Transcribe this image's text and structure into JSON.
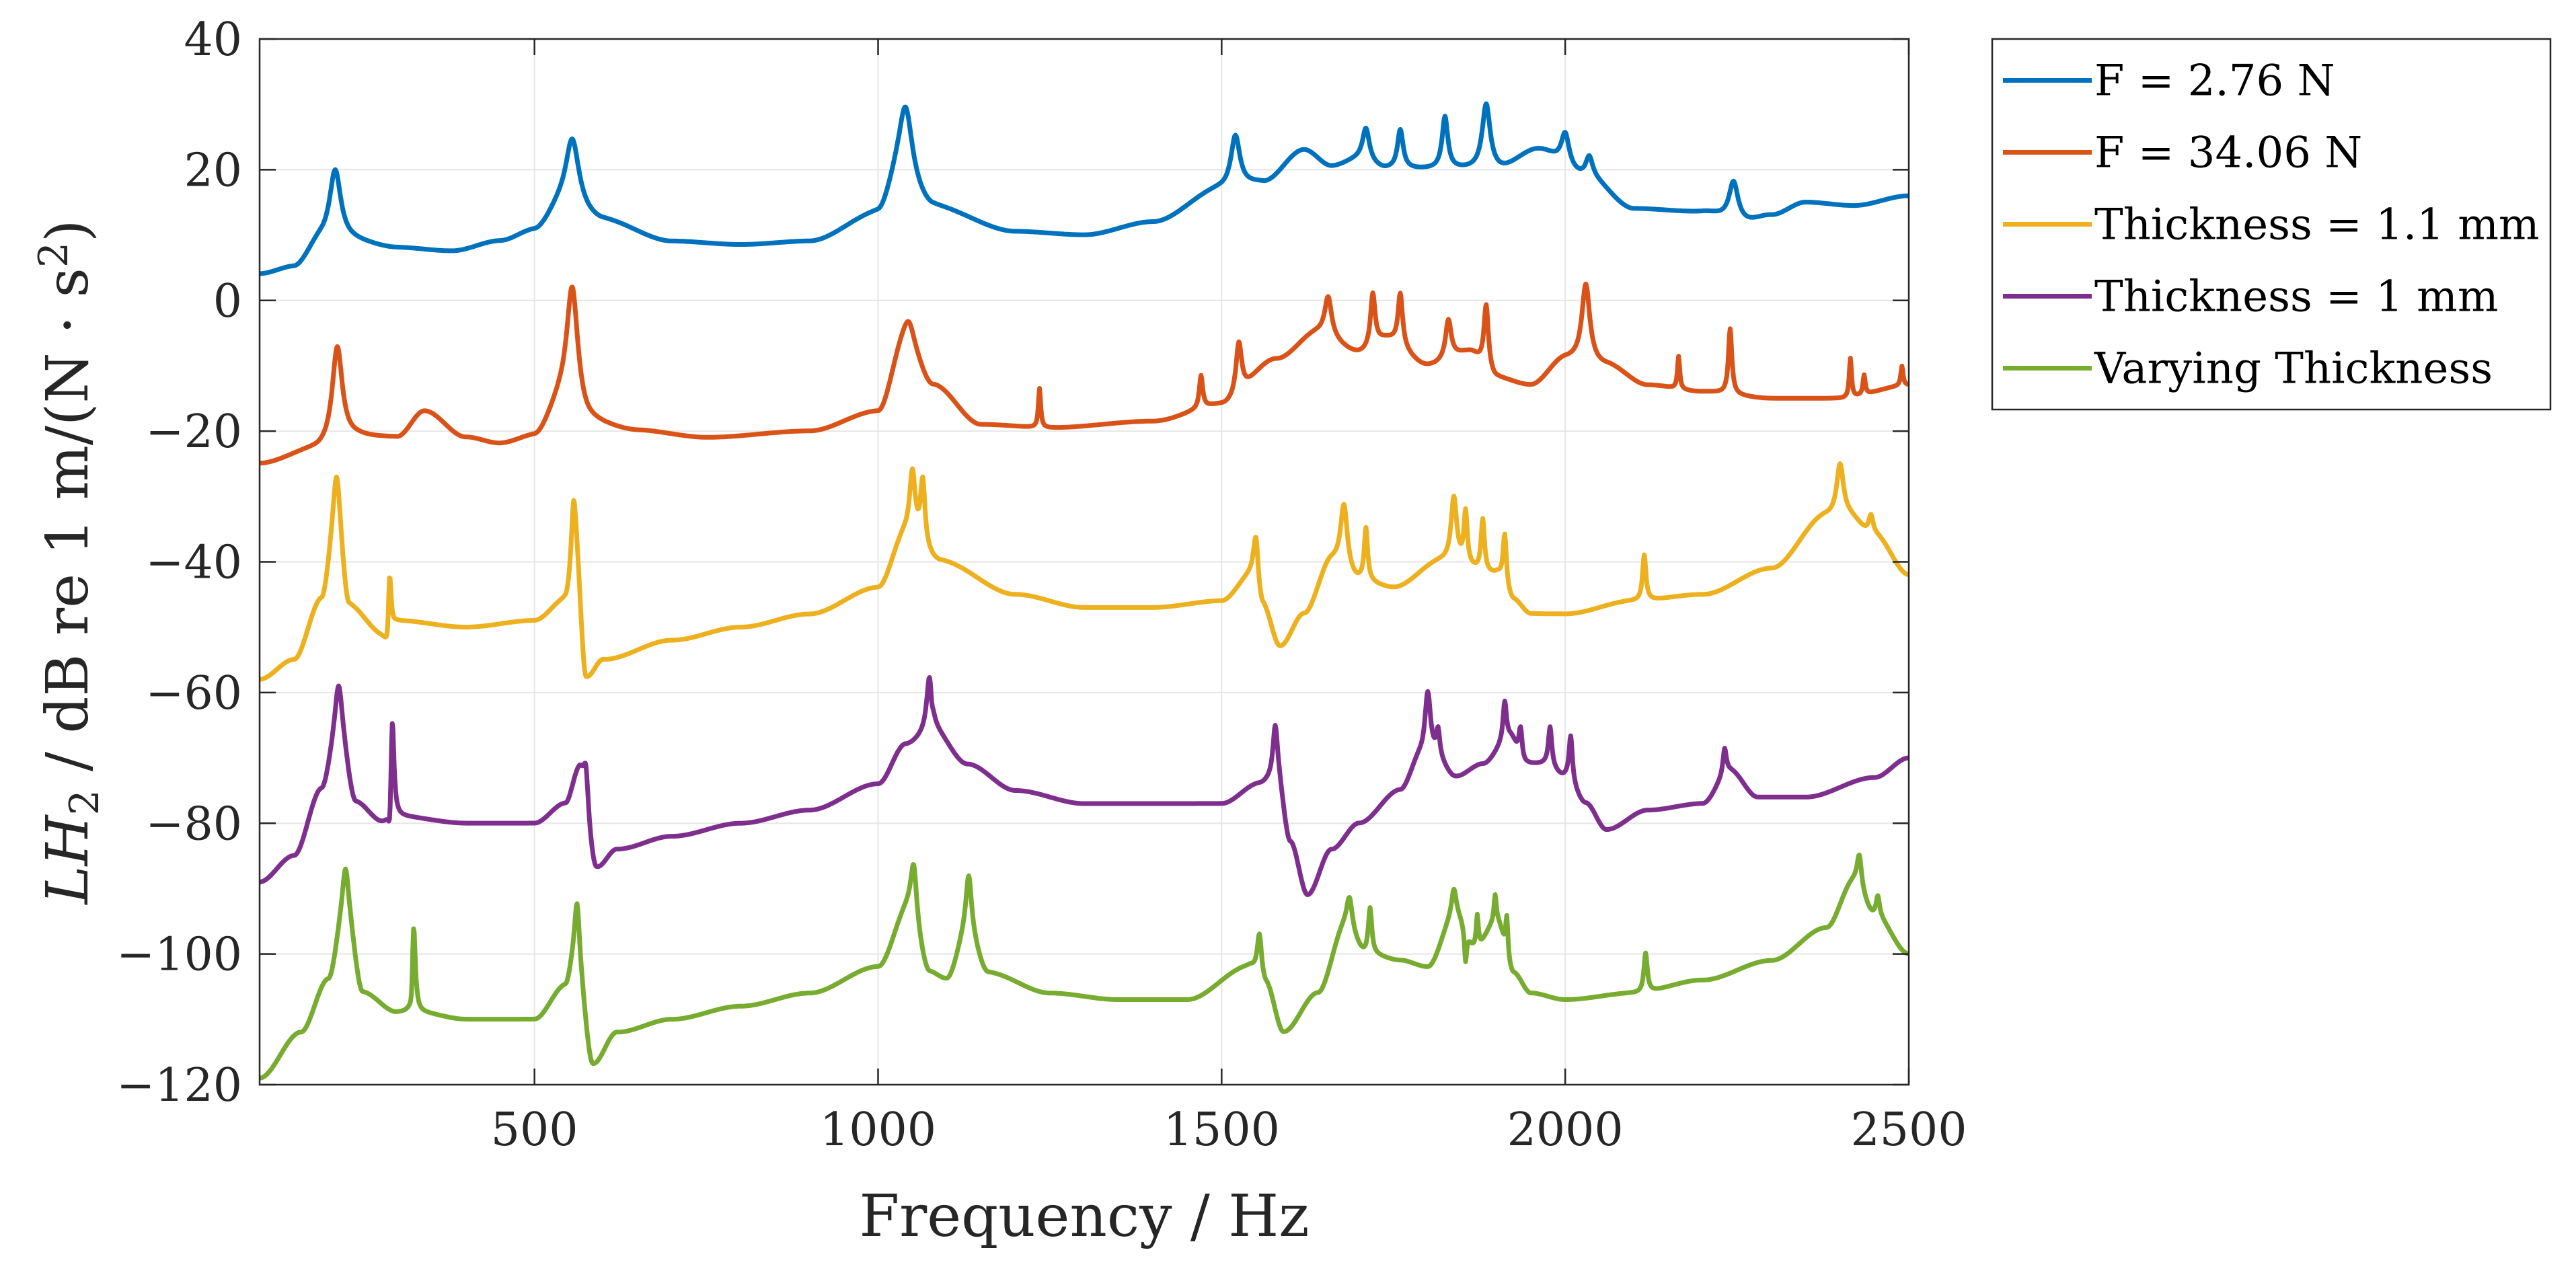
{
  "chart_data": {
    "type": "line",
    "title": "",
    "xlabel": "Frequency / Hz",
    "ylabel_parts": [
      "LH",
      "2",
      " / dB re 1 m/(N · s",
      "2",
      ")"
    ],
    "xlim": [
      100,
      2500
    ],
    "ylim": [
      -120,
      40
    ],
    "xticks": [
      500,
      1000,
      1500,
      2000,
      2500
    ],
    "xtick_labels": [
      "500",
      "1000",
      "1500",
      "2000",
      "2500"
    ],
    "yticks": [
      40,
      20,
      0,
      -20,
      -40,
      -60,
      -80,
      -100,
      -120
    ],
    "ytick_labels": [
      "40",
      "20",
      "0",
      "−20",
      "−40",
      "−60",
      "−80",
      "−100",
      "−120"
    ],
    "grid": true,
    "legend_position": "outside-right-top",
    "series": [
      {
        "name": "F = 2.76 N",
        "color": "#0072BD",
        "baseline": [
          [
            100,
            4
          ],
          [
            150,
            5
          ],
          [
            190,
            9
          ],
          [
            230,
            9
          ],
          [
            300,
            8
          ],
          [
            380,
            7.5
          ],
          [
            450,
            9
          ],
          [
            500,
            10.5
          ],
          [
            540,
            14
          ],
          [
            600,
            12
          ],
          [
            700,
            9
          ],
          [
            800,
            8.5
          ],
          [
            900,
            9
          ],
          [
            1000,
            13
          ],
          [
            1030,
            18
          ],
          [
            1080,
            14
          ],
          [
            1200,
            10.5
          ],
          [
            1300,
            10
          ],
          [
            1400,
            12
          ],
          [
            1500,
            17
          ],
          [
            1560,
            18
          ],
          [
            1620,
            23
          ],
          [
            1660,
            20.5
          ],
          [
            1700,
            21.5
          ],
          [
            1740,
            20
          ],
          [
            1800,
            20
          ],
          [
            1900,
            20
          ],
          [
            1960,
            23
          ],
          [
            2030,
            19
          ],
          [
            2100,
            14
          ],
          [
            2200,
            13.5
          ],
          [
            2260,
            12
          ],
          [
            2300,
            13
          ],
          [
            2350,
            15
          ],
          [
            2420,
            14.5
          ],
          [
            2500,
            16
          ]
        ],
        "peaks": [
          [
            210,
            11,
            10
          ],
          [
            555,
            11,
            12
          ],
          [
            1040,
            12,
            12
          ],
          [
            1520,
            8,
            8
          ],
          [
            1710,
            5,
            6
          ],
          [
            1760,
            6,
            5
          ],
          [
            1825,
            8,
            5
          ],
          [
            1885,
            10,
            7
          ],
          [
            2000,
            5,
            7
          ],
          [
            2035,
            3,
            6
          ],
          [
            2245,
            6,
            8
          ]
        ]
      },
      {
        "name": "F = 34.06 N",
        "color": "#D95319",
        "baseline": [
          [
            100,
            -25
          ],
          [
            180,
            -23
          ],
          [
            250,
            -21
          ],
          [
            300,
            -21
          ],
          [
            340,
            -17
          ],
          [
            400,
            -21
          ],
          [
            450,
            -22
          ],
          [
            500,
            -21
          ],
          [
            540,
            -16
          ],
          [
            580,
            -19
          ],
          [
            650,
            -20
          ],
          [
            750,
            -21
          ],
          [
            900,
            -20
          ],
          [
            1000,
            -17
          ],
          [
            1040,
            -6
          ],
          [
            1080,
            -13
          ],
          [
            1150,
            -19
          ],
          [
            1250,
            -19.5
          ],
          [
            1400,
            -18.5
          ],
          [
            1500,
            -16
          ],
          [
            1580,
            -9
          ],
          [
            1640,
            -5
          ],
          [
            1700,
            -8
          ],
          [
            1740,
            -6
          ],
          [
            1800,
            -10
          ],
          [
            1860,
            -8
          ],
          [
            1900,
            -12
          ],
          [
            1950,
            -13
          ],
          [
            2000,
            -9
          ],
          [
            2060,
            -10
          ],
          [
            2120,
            -13
          ],
          [
            2200,
            -14
          ],
          [
            2300,
            -15
          ],
          [
            2400,
            -15
          ],
          [
            2500,
            -13
          ]
        ],
        "peaks": [
          [
            213,
            15,
            9
          ],
          [
            555,
            19,
            10
          ],
          [
            1045,
            3,
            9
          ],
          [
            1235,
            6,
            2
          ],
          [
            1470,
            5,
            3
          ],
          [
            1525,
            8,
            5
          ],
          [
            1655,
            6,
            6
          ],
          [
            1720,
            8,
            4
          ],
          [
            1760,
            8,
            4
          ],
          [
            1830,
            6,
            5
          ],
          [
            1885,
            10,
            4
          ],
          [
            2030,
            12,
            7
          ],
          [
            2165,
            5,
            2
          ],
          [
            2240,
            10,
            3
          ],
          [
            2415,
            6,
            2
          ],
          [
            2435,
            3,
            2
          ],
          [
            2490,
            3,
            2
          ]
        ]
      },
      {
        "name": "Thickness = 1.1 mm",
        "color": "#EDB120",
        "baseline": [
          [
            100,
            -58
          ],
          [
            150,
            -55
          ],
          [
            190,
            -46
          ],
          [
            212,
            -35
          ],
          [
            230,
            -47
          ],
          [
            280,
            -51
          ],
          [
            300,
            -49
          ],
          [
            400,
            -50
          ],
          [
            500,
            -49
          ],
          [
            545,
            -46
          ],
          [
            560,
            -40
          ],
          [
            575,
            -58
          ],
          [
            600,
            -55
          ],
          [
            700,
            -52
          ],
          [
            800,
            -50
          ],
          [
            900,
            -48
          ],
          [
            1000,
            -44
          ],
          [
            1040,
            -36
          ],
          [
            1090,
            -40
          ],
          [
            1200,
            -45
          ],
          [
            1300,
            -47
          ],
          [
            1400,
            -47
          ],
          [
            1500,
            -46
          ],
          [
            1545,
            -42
          ],
          [
            1560,
            -47
          ],
          [
            1585,
            -53
          ],
          [
            1620,
            -48
          ],
          [
            1660,
            -40
          ],
          [
            1700,
            -43
          ],
          [
            1750,
            -44
          ],
          [
            1820,
            -40
          ],
          [
            1900,
            -42
          ],
          [
            1925,
            -46
          ],
          [
            1950,
            -48
          ],
          [
            2000,
            -48
          ],
          [
            2100,
            -46
          ],
          [
            2200,
            -45
          ],
          [
            2300,
            -41
          ],
          [
            2380,
            -33
          ],
          [
            2410,
            -33
          ],
          [
            2450,
            -36
          ],
          [
            2500,
            -42
          ]
        ],
        "peaks": [
          [
            212,
            8,
            6
          ],
          [
            288,
            -11,
            4
          ],
          [
            289,
            18,
            3
          ],
          [
            557,
            10,
            4
          ],
          [
            1050,
            10,
            5
          ],
          [
            1065,
            10,
            4
          ],
          [
            1550,
            7,
            4
          ],
          [
            1678,
            10,
            6
          ],
          [
            1710,
            8,
            3
          ],
          [
            1838,
            10,
            5
          ],
          [
            1855,
            8,
            3
          ],
          [
            1880,
            8,
            3
          ],
          [
            1912,
            8,
            3
          ],
          [
            2115,
            7,
            3
          ],
          [
            2400,
            8,
            6
          ],
          [
            2445,
            3,
            4
          ]
        ]
      },
      {
        "name": "Thickness = 1 mm",
        "color": "#7E2F8E",
        "baseline": [
          [
            100,
            -89
          ],
          [
            150,
            -85
          ],
          [
            190,
            -75
          ],
          [
            215,
            -66
          ],
          [
            240,
            -77
          ],
          [
            280,
            -80
          ],
          [
            300,
            -79
          ],
          [
            400,
            -80
          ],
          [
            500,
            -80
          ],
          [
            545,
            -77
          ],
          [
            565,
            -72
          ],
          [
            590,
            -87
          ],
          [
            620,
            -84
          ],
          [
            700,
            -82
          ],
          [
            800,
            -80
          ],
          [
            900,
            -78
          ],
          [
            1000,
            -74
          ],
          [
            1040,
            -68
          ],
          [
            1080,
            -66
          ],
          [
            1130,
            -71
          ],
          [
            1200,
            -75
          ],
          [
            1300,
            -77
          ],
          [
            1400,
            -77
          ],
          [
            1500,
            -77
          ],
          [
            1555,
            -74
          ],
          [
            1580,
            -73
          ],
          [
            1600,
            -83
          ],
          [
            1625,
            -91
          ],
          [
            1660,
            -84
          ],
          [
            1700,
            -80
          ],
          [
            1760,
            -75
          ],
          [
            1790,
            -70
          ],
          [
            1810,
            -70
          ],
          [
            1840,
            -73
          ],
          [
            1880,
            -71
          ],
          [
            1920,
            -67
          ],
          [
            1940,
            -71
          ],
          [
            1970,
            -71
          ],
          [
            2000,
            -73
          ],
          [
            2030,
            -77
          ],
          [
            2060,
            -81
          ],
          [
            2120,
            -78
          ],
          [
            2200,
            -77
          ],
          [
            2240,
            -72
          ],
          [
            2280,
            -76
          ],
          [
            2350,
            -76
          ],
          [
            2450,
            -73
          ],
          [
            2500,
            -70
          ]
        ],
        "peaks": [
          [
            215,
            7,
            6
          ],
          [
            290,
            -7,
            3
          ],
          [
            293,
            18,
            3
          ],
          [
            575,
            6,
            4
          ],
          [
            1075,
            9,
            5
          ],
          [
            1078,
            -2,
            2
          ],
          [
            1578,
            8,
            4
          ],
          [
            1800,
            10,
            5
          ],
          [
            1815,
            4,
            3
          ],
          [
            1912,
            6,
            3
          ],
          [
            1935,
            5,
            3
          ],
          [
            1978,
            6,
            3
          ],
          [
            2008,
            7,
            3
          ],
          [
            2232,
            4,
            3
          ]
        ]
      },
      {
        "name": "Varying Thickness",
        "color": "#77AC30",
        "baseline": [
          [
            100,
            -119
          ],
          [
            160,
            -112
          ],
          [
            200,
            -104
          ],
          [
            225,
            -93
          ],
          [
            250,
            -106
          ],
          [
            300,
            -109
          ],
          [
            330,
            -109
          ],
          [
            400,
            -110
          ],
          [
            500,
            -110
          ],
          [
            545,
            -105
          ],
          [
            560,
            -100
          ],
          [
            585,
            -117
          ],
          [
            620,
            -112
          ],
          [
            700,
            -110
          ],
          [
            800,
            -108
          ],
          [
            900,
            -106
          ],
          [
            1000,
            -102
          ],
          [
            1045,
            -93
          ],
          [
            1075,
            -103
          ],
          [
            1100,
            -104
          ],
          [
            1130,
            -97
          ],
          [
            1160,
            -103
          ],
          [
            1250,
            -106
          ],
          [
            1350,
            -107
          ],
          [
            1450,
            -107
          ],
          [
            1540,
            -102
          ],
          [
            1565,
            -105
          ],
          [
            1590,
            -112
          ],
          [
            1640,
            -106
          ],
          [
            1680,
            -96
          ],
          [
            1710,
            -100
          ],
          [
            1760,
            -101
          ],
          [
            1800,
            -102
          ],
          [
            1840,
            -94
          ],
          [
            1870,
            -99
          ],
          [
            1900,
            -95
          ],
          [
            1925,
            -103
          ],
          [
            1950,
            -106
          ],
          [
            2000,
            -107
          ],
          [
            2100,
            -106
          ],
          [
            2200,
            -104
          ],
          [
            2300,
            -101
          ],
          [
            2380,
            -96
          ],
          [
            2420,
            -89
          ],
          [
            2450,
            -94
          ],
          [
            2500,
            -100
          ]
        ],
        "peaks": [
          [
            225,
            6,
            5
          ],
          [
            322,
            -6,
            3
          ],
          [
            324,
            17,
            3
          ],
          [
            562,
            8,
            4
          ],
          [
            1052,
            8,
            5
          ],
          [
            1132,
            9,
            5
          ],
          [
            1555,
            7,
            4
          ],
          [
            1686,
            5,
            5
          ],
          [
            1716,
            7,
            3
          ],
          [
            1838,
            4,
            4
          ],
          [
            1855,
            -5,
            2
          ],
          [
            1872,
            5,
            2
          ],
          [
            1898,
            4,
            2
          ],
          [
            1915,
            6,
            2
          ],
          [
            2117,
            6,
            3
          ],
          [
            2428,
            5,
            4
          ],
          [
            2455,
            3,
            3
          ]
        ]
      }
    ]
  }
}
